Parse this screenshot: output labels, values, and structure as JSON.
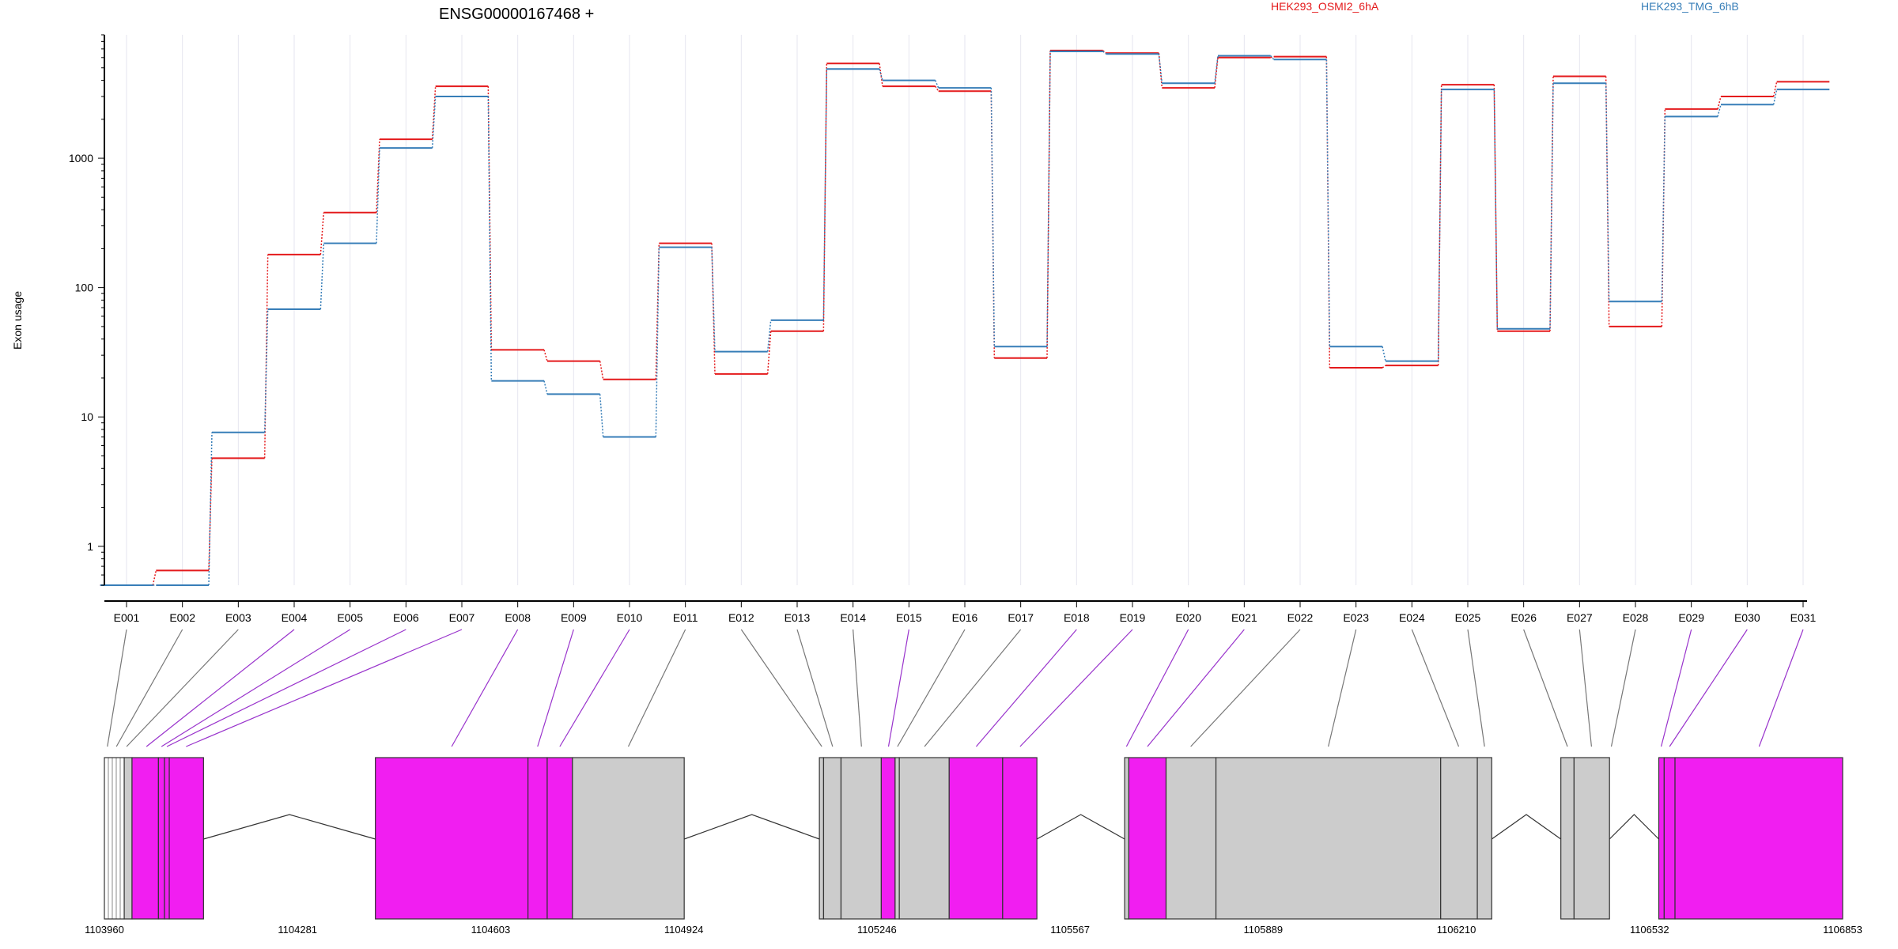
{
  "chart_data": {
    "type": "line",
    "title": "ENSG00000167468 +",
    "ylabel": "Exon usage",
    "yscale": "log",
    "ylim": [
      0.5,
      9000
    ],
    "yticks": [
      "1",
      "10",
      "100",
      "1000"
    ],
    "grid": true,
    "legend_position": "top-right",
    "categories": [
      "E001",
      "E002",
      "E003",
      "E004",
      "E005",
      "E006",
      "E007",
      "E008",
      "E009",
      "E010",
      "E011",
      "E012",
      "E013",
      "E014",
      "E015",
      "E016",
      "E017",
      "E018",
      "E019",
      "E020",
      "E021",
      "E022",
      "E023",
      "E024",
      "E025",
      "E026",
      "E027",
      "E028",
      "E029",
      "E030",
      "E031"
    ],
    "series": [
      {
        "name": "HEK293_OSMI2_6hA",
        "color": "#e41a1c",
        "values": [
          0.5,
          0.65,
          4.8,
          180,
          380,
          1400,
          3600,
          33,
          27,
          19.5,
          220,
          21.5,
          46,
          5400,
          3600,
          3300,
          28.5,
          6800,
          6500,
          3500,
          6000,
          6100,
          24,
          25,
          3700,
          46,
          4300,
          50,
          2400,
          3000,
          3900
        ]
      },
      {
        "name": "HEK293_TMG_6hB",
        "color": "#377eb8",
        "values": [
          0.5,
          0.5,
          7.6,
          68,
          220,
          1200,
          3000,
          19,
          15,
          7,
          205,
          32,
          56,
          4900,
          4000,
          3500,
          35,
          6700,
          6400,
          3800,
          6200,
          5800,
          35,
          27,
          3400,
          48,
          3800,
          78,
          2100,
          2600,
          3400
        ]
      }
    ],
    "gene_model": {
      "coordinate_labels": [
        "1103960",
        "1104281",
        "1104603",
        "1104924",
        "1105246",
        "1105567",
        "1105889",
        "1106210",
        "1106532",
        "1106853"
      ],
      "colors": {
        "highlight": "#f11ef1",
        "normal": "#cccccc",
        "connector_highlight": "#9933cc",
        "connector_normal": "#777777"
      },
      "exons": [
        {
          "start": 1103960,
          "end": 1103993,
          "highlight": false,
          "hatch": true
        },
        {
          "start": 1103993,
          "end": 1104006,
          "highlight": false
        },
        {
          "start": 1104006,
          "end": 1104050,
          "highlight": true
        },
        {
          "start": 1104050,
          "end": 1104060,
          "highlight": true
        },
        {
          "start": 1104060,
          "end": 1104068,
          "highlight": true
        },
        {
          "start": 1104068,
          "end": 1104125,
          "highlight": true
        },
        {
          "start": 1104411,
          "end": 1104665,
          "highlight": true
        },
        {
          "start": 1104665,
          "end": 1104697,
          "highlight": true
        },
        {
          "start": 1104697,
          "end": 1104739,
          "highlight": true
        },
        {
          "start": 1104739,
          "end": 1104925,
          "highlight": false
        },
        {
          "start": 1105150,
          "end": 1105157,
          "highlight": false
        },
        {
          "start": 1105157,
          "end": 1105186,
          "highlight": false
        },
        {
          "start": 1105186,
          "end": 1105253,
          "highlight": false
        },
        {
          "start": 1105253,
          "end": 1105276,
          "highlight": true
        },
        {
          "start": 1105276,
          "end": 1105283,
          "highlight": false
        },
        {
          "start": 1105283,
          "end": 1105366,
          "highlight": false
        },
        {
          "start": 1105366,
          "end": 1105455,
          "highlight": true
        },
        {
          "start": 1105455,
          "end": 1105512,
          "highlight": true
        },
        {
          "start": 1105658,
          "end": 1105665,
          "highlight": false
        },
        {
          "start": 1105665,
          "end": 1105727,
          "highlight": true
        },
        {
          "start": 1105727,
          "end": 1105810,
          "highlight": false
        },
        {
          "start": 1105810,
          "end": 1106184,
          "highlight": false
        },
        {
          "start": 1106184,
          "end": 1106245,
          "highlight": false
        },
        {
          "start": 1106245,
          "end": 1106269,
          "highlight": false
        },
        {
          "start": 1106384,
          "end": 1106406,
          "highlight": false
        },
        {
          "start": 1106406,
          "end": 1106465,
          "highlight": false
        },
        {
          "start": 1106547,
          "end": 1106556,
          "highlight": true
        },
        {
          "start": 1106556,
          "end": 1106574,
          "highlight": true
        },
        {
          "start": 1106574,
          "end": 1106853,
          "highlight": true
        }
      ],
      "introns": [
        [
          1104125,
          1104411
        ],
        [
          1104925,
          1105150
        ],
        [
          1105512,
          1105658
        ],
        [
          1106269,
          1106384
        ],
        [
          1106465,
          1106547
        ]
      ],
      "connectors": [
        {
          "exon": "E001",
          "pos": 1103965,
          "highlight": false
        },
        {
          "exon": "E002",
          "pos": 1103980,
          "highlight": false
        },
        {
          "exon": "E003",
          "pos": 1103997,
          "highlight": false
        },
        {
          "exon": "E004",
          "pos": 1104030,
          "highlight": true
        },
        {
          "exon": "E005",
          "pos": 1104055,
          "highlight": true
        },
        {
          "exon": "E006",
          "pos": 1104064,
          "highlight": true
        },
        {
          "exon": "E007",
          "pos": 1104096,
          "highlight": true
        },
        {
          "exon": "E008",
          "pos": 1104538,
          "highlight": true
        },
        {
          "exon": "E009",
          "pos": 1104681,
          "highlight": true
        },
        {
          "exon": "E010",
          "pos": 1104718,
          "highlight": true
        },
        {
          "exon": "E011",
          "pos": 1104832,
          "highlight": false
        },
        {
          "exon": "E012",
          "pos": 1105154,
          "highlight": false
        },
        {
          "exon": "E013",
          "pos": 1105172,
          "highlight": false
        },
        {
          "exon": "E014",
          "pos": 1105220,
          "highlight": false
        },
        {
          "exon": "E015",
          "pos": 1105265,
          "highlight": true
        },
        {
          "exon": "E016",
          "pos": 1105280,
          "highlight": false
        },
        {
          "exon": "E017",
          "pos": 1105325,
          "highlight": false
        },
        {
          "exon": "E018",
          "pos": 1105411,
          "highlight": true
        },
        {
          "exon": "E019",
          "pos": 1105484,
          "highlight": true
        },
        {
          "exon": "E020",
          "pos": 1105661,
          "highlight": true
        },
        {
          "exon": "E021",
          "pos": 1105696,
          "highlight": true
        },
        {
          "exon": "E022",
          "pos": 1105768,
          "highlight": false
        },
        {
          "exon": "E023",
          "pos": 1105997,
          "highlight": false
        },
        {
          "exon": "E024",
          "pos": 1106214,
          "highlight": false
        },
        {
          "exon": "E025",
          "pos": 1106257,
          "highlight": false
        },
        {
          "exon": "E026",
          "pos": 1106395,
          "highlight": false
        },
        {
          "exon": "E027",
          "pos": 1106435,
          "highlight": false
        },
        {
          "exon": "E028",
          "pos": 1106468,
          "highlight": false
        },
        {
          "exon": "E029",
          "pos": 1106551,
          "highlight": true
        },
        {
          "exon": "E030",
          "pos": 1106565,
          "highlight": true
        },
        {
          "exon": "E031",
          "pos": 1106714,
          "highlight": true
        }
      ]
    }
  }
}
